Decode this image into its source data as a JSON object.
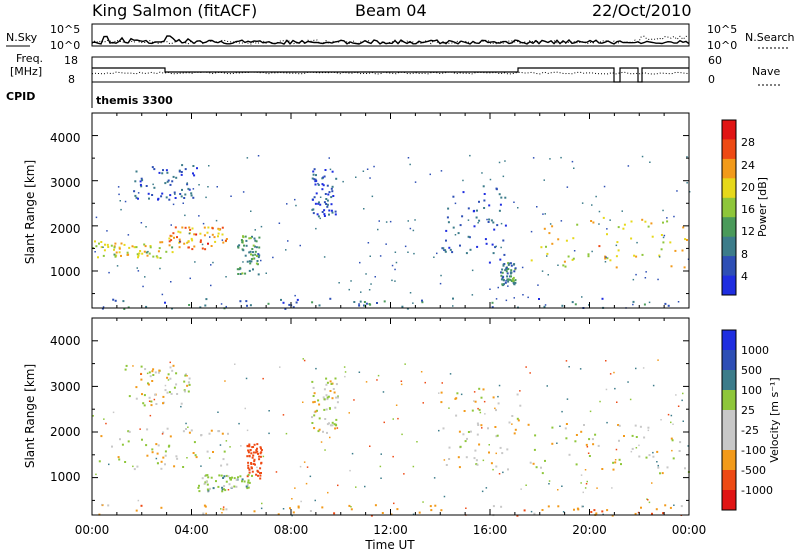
{
  "header": {
    "station": "King Salmon (fitACF)",
    "beam": "Beam 04",
    "date": "22/Oct/2010"
  },
  "noise_panel": {
    "left_label": "N.Sky",
    "right_label": "N.Search",
    "ticks_left": [
      "10^5",
      "10^0"
    ],
    "ticks_right": [
      "10^5",
      "10^0"
    ]
  },
  "freq_panel": {
    "left_label_line1": "Freq.",
    "left_label_line2": "[MHz]",
    "right_label": "Nave",
    "ticks_left": [
      "18",
      "8"
    ],
    "ticks_right": [
      "60",
      "0"
    ]
  },
  "cpid": {
    "label": "CPID",
    "value": "themis 3300"
  },
  "x_axis": {
    "label": "Time UT",
    "ticks": [
      "00:00",
      "04:00",
      "08:00",
      "12:00",
      "16:00",
      "20:00",
      "00:00"
    ]
  },
  "power_panel": {
    "ylabel": "Slant Range [km]",
    "yticks": [
      "4000",
      "3000",
      "2000",
      "1000"
    ],
    "colorbar_label": "Power [dB]",
    "colorbar_ticks": [
      "28",
      "24",
      "20",
      "16",
      "12",
      "8",
      "4"
    ]
  },
  "velocity_panel": {
    "ylabel": "Slant Range [km]",
    "yticks": [
      "4000",
      "3000",
      "2000",
      "1000"
    ],
    "colorbar_label": "Velocity [m s⁻¹]",
    "colorbar_ticks": [
      "1000",
      "500",
      "100",
      "25",
      "-25",
      "-100",
      "-500",
      "-1000"
    ]
  },
  "chart_data": [
    {
      "type": "heatmap",
      "title": "Power",
      "x_range_hours": [
        0,
        24
      ],
      "y_range_km": [
        180,
        4500
      ],
      "colorbar_range_db": [
        0,
        32
      ],
      "colorbar_colors": [
        "#1f2ee0",
        "#2e4fb5",
        "#3c7c8a",
        "#4a9a5a",
        "#8ec63a",
        "#e6d81a",
        "#f29a1a",
        "#ee4a14",
        "#e01414"
      ],
      "regions": [
        {
          "t0": 0.0,
          "t1": 3.2,
          "r0": 1300,
          "r1": 1700,
          "db": 18
        },
        {
          "t0": 3.0,
          "t1": 5.4,
          "r0": 1500,
          "r1": 2000,
          "db": 24
        },
        {
          "t0": 5.8,
          "t1": 6.7,
          "r0": 900,
          "r1": 1800,
          "db": 12
        },
        {
          "t0": 1.6,
          "t1": 4.2,
          "r0": 2600,
          "r1": 3400,
          "db": 6
        },
        {
          "t0": 8.8,
          "t1": 9.8,
          "r0": 2200,
          "r1": 3300,
          "db": 5
        },
        {
          "t0": 14.0,
          "t1": 16.6,
          "r0": 1200,
          "r1": 2900,
          "db": 6
        },
        {
          "t0": 16.4,
          "t1": 17.0,
          "r0": 700,
          "r1": 1200,
          "db": 10
        },
        {
          "t0": 17.4,
          "t1": 24.0,
          "r0": 1100,
          "r1": 2200,
          "db": 20
        },
        {
          "t0": 0.0,
          "t1": 24.0,
          "r0": 180,
          "r1": 420,
          "db": 8
        }
      ]
    },
    {
      "type": "heatmap",
      "title": "Velocity",
      "x_range_hours": [
        0,
        24
      ],
      "y_range_km": [
        180,
        4500
      ],
      "colorbar_range_ms": [
        -1000,
        1000
      ],
      "colorbar_colors": [
        "#e01414",
        "#ee4a14",
        "#f29a1a",
        "#c8c8c8",
        "#c8c8c8",
        "#8ec63a",
        "#3c7c8a",
        "#2e4fb5",
        "#1f2ee0"
      ],
      "regions": [
        {
          "t0": 0.0,
          "t1": 5.6,
          "r0": 1200,
          "r1": 2100,
          "v": 0
        },
        {
          "t0": 6.2,
          "t1": 6.8,
          "r0": 1000,
          "r1": 1800,
          "v": -300
        },
        {
          "t0": 4.2,
          "t1": 6.4,
          "r0": 700,
          "r1": 1100,
          "v": 60
        },
        {
          "t0": 1.2,
          "t1": 4.0,
          "r0": 2600,
          "r1": 3500,
          "v": 0
        },
        {
          "t0": 8.8,
          "t1": 9.9,
          "r0": 2000,
          "r1": 3200,
          "v": 0
        },
        {
          "t0": 14.0,
          "t1": 17.2,
          "r0": 1200,
          "r1": 3000,
          "v": 0
        },
        {
          "t0": 17.4,
          "t1": 24.0,
          "r0": 1100,
          "r1": 2200,
          "v": 0
        },
        {
          "t0": 0.0,
          "t1": 24.0,
          "r0": 180,
          "r1": 420,
          "v": -60
        }
      ]
    }
  ]
}
